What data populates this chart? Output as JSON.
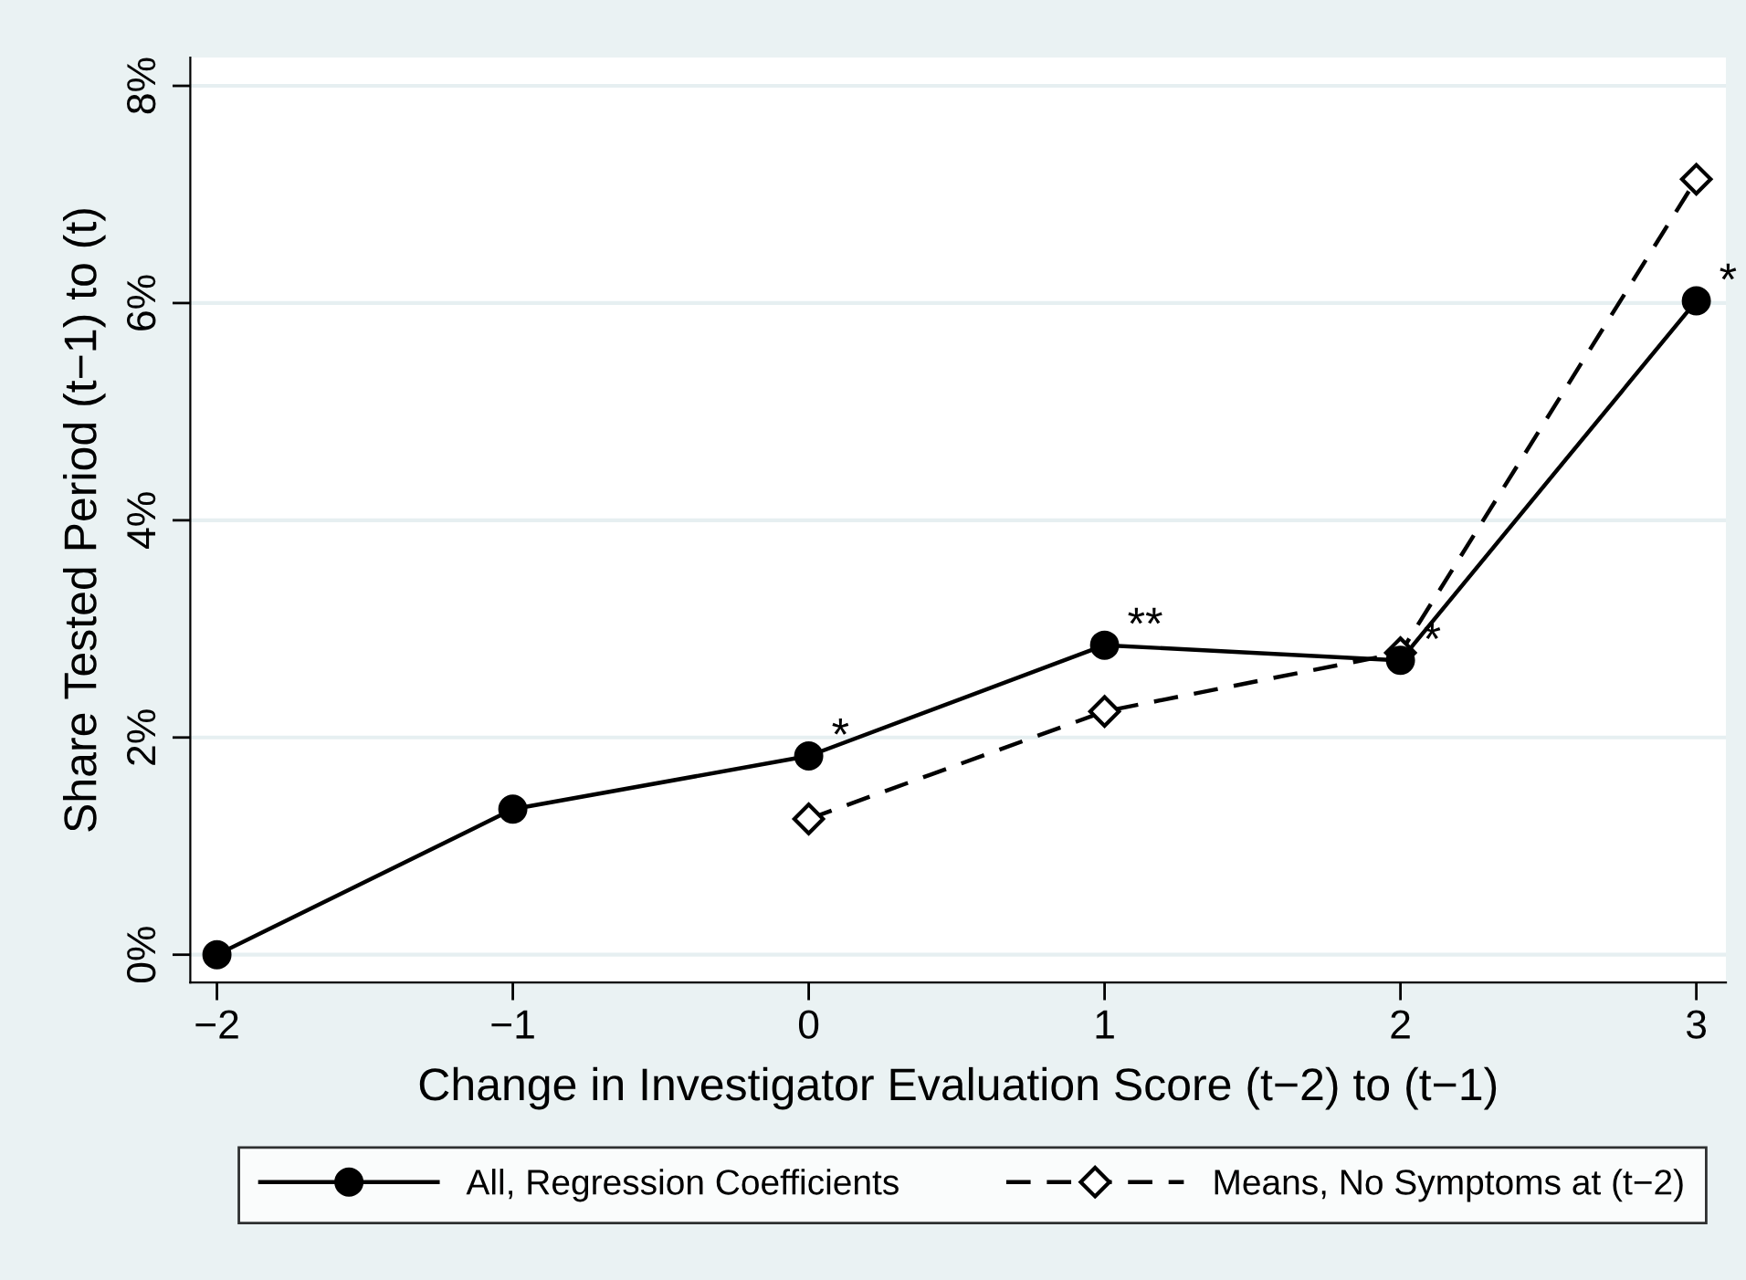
{
  "chart_data": {
    "type": "line",
    "xlabel": "Change in Investigator Evaluation Score (t−2) to (t−1)",
    "ylabel": "Share Tested Period (t−1) to (t)",
    "xlim": [
      -2.09,
      3.1
    ],
    "xticks": [
      {
        "value": -2,
        "label": "−2"
      },
      {
        "value": -1,
        "label": "−1"
      },
      0,
      1,
      2,
      3
    ],
    "ylim": [
      -0.255,
      8.26
    ],
    "yticks": [
      {
        "value": 0,
        "label": "0%"
      },
      {
        "value": 2,
        "label": "2%"
      },
      {
        "value": 4,
        "label": "4%"
      },
      {
        "value": 6,
        "label": "6%"
      },
      {
        "value": 8,
        "label": "8%"
      }
    ],
    "grid": "y",
    "legend": "bottom",
    "series": [
      {
        "name": "All, Regression Coefficients",
        "color": "#000000",
        "marker": "circle",
        "line_style": "solid",
        "x": [
          -2,
          -1,
          0,
          1,
          2,
          3
        ],
        "values": [
          0,
          1.34,
          1.83,
          2.85,
          2.71,
          6.02
        ]
      },
      {
        "name": "Means, No Symptoms at (t−2)",
        "color": "#000000",
        "marker": "diamond",
        "line_style": "dashed",
        "x": [
          0,
          1,
          2,
          3
        ],
        "values": [
          1.25,
          2.24,
          2.78,
          7.14
        ]
      }
    ],
    "annotations": [
      {
        "text": "*",
        "x": 0,
        "y": 1.83
      },
      {
        "text": "**",
        "x": 1,
        "y": 2.85
      },
      {
        "text": "*",
        "x": 2,
        "y": 2.71
      },
      {
        "text": "*",
        "x": 3,
        "y": 6.02
      }
    ]
  }
}
